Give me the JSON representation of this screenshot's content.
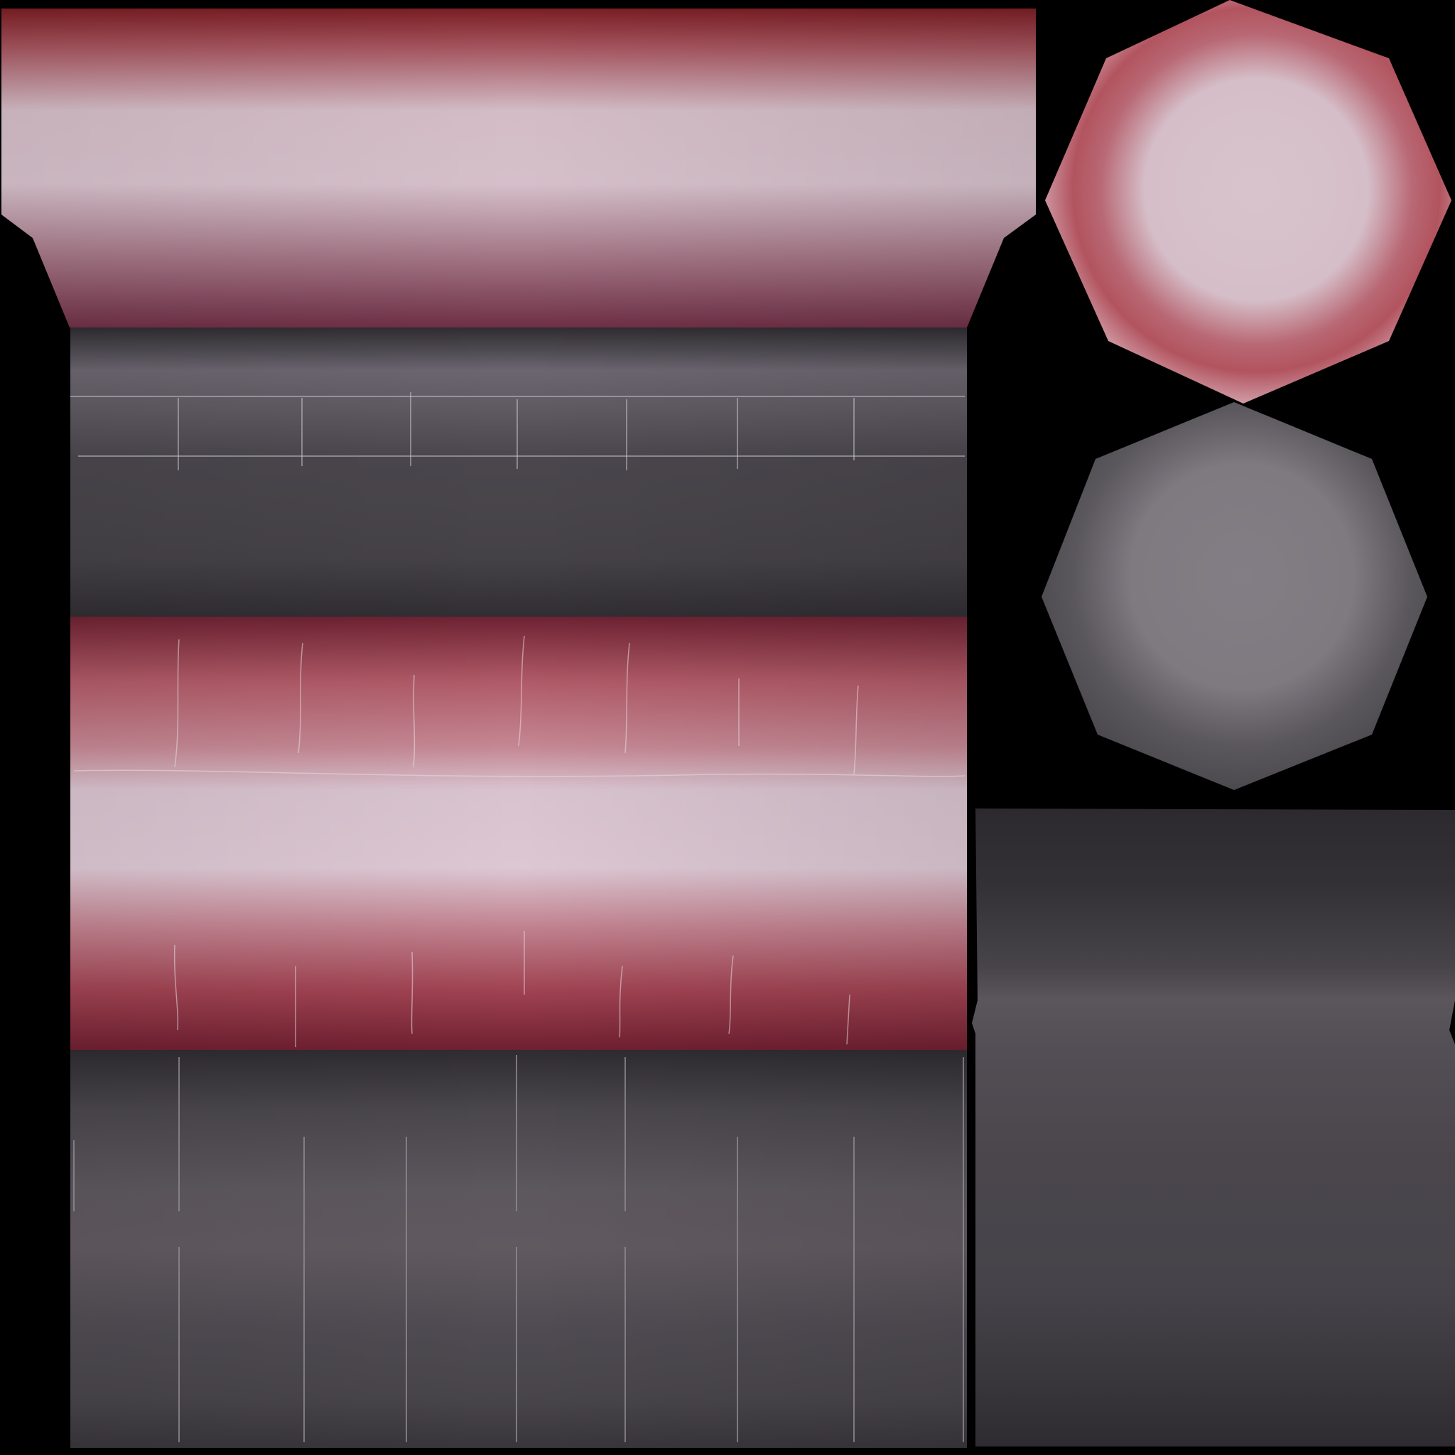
{
  "texture_atlas": {
    "background_color": "#000000",
    "palette": {
      "crimson_dark": "#7a1e2b",
      "crimson_mid": "#b45a68",
      "pink_light": "#d8c3cd",
      "slate_dark": "#333036",
      "slate_mid": "#4a474e",
      "slate_light": "#625a62",
      "scratch": "#c8c2cc"
    },
    "islands": [
      {
        "label": "top-red-cap-band",
        "fill": "red-gradient"
      },
      {
        "label": "upper-gray-band",
        "fill": "gray-gradient"
      },
      {
        "label": "middle-red-band",
        "fill": "red-gradient"
      },
      {
        "label": "lower-gray-band",
        "fill": "gray-gradient"
      },
      {
        "label": "red-octagon-cap",
        "fill": "radial-pink"
      },
      {
        "label": "gray-octagon-cap",
        "fill": "radial-gray"
      },
      {
        "label": "right-gray-panel",
        "fill": "gray-gradient"
      }
    ]
  }
}
